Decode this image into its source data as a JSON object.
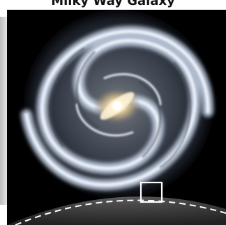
{
  "image": {
    "subject": "spiral-galaxy",
    "colors": {
      "space": "#000000",
      "core": "#f4e2b8",
      "arms": "#d6e2f2",
      "marker": "#ffffff",
      "disk_edge": "#ffffff"
    },
    "caption": "Milky Way Galaxy"
  }
}
